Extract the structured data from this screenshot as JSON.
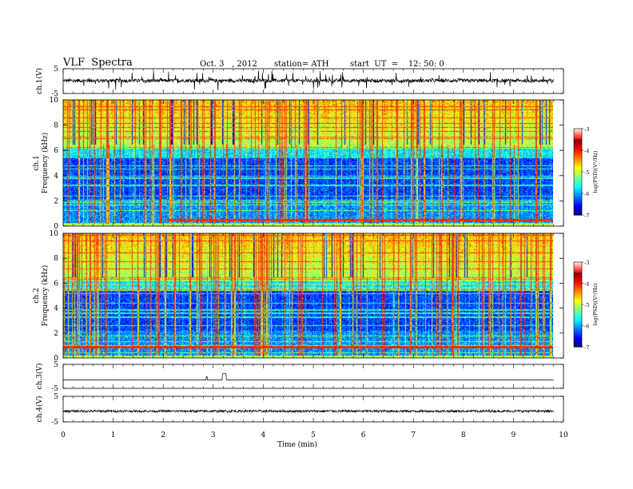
{
  "header": {
    "title": "VLF  Spectra",
    "date": "Oct. 3   , 2012",
    "station": "station= ATH",
    "start": "start  UT  =    12: 50: 0"
  },
  "chart_data": [
    {
      "type": "line",
      "ylabel": "ch.1(V)",
      "ylim": [
        -5,
        5
      ],
      "yticks": [
        "5",
        "-5"
      ],
      "xlim": [
        0,
        10
      ],
      "baseline": 0.2,
      "noise": 0.7,
      "spike_rate": 0.06,
      "spike_amp": 3.5
    },
    {
      "type": "heatmap",
      "ylabel": "Frequency  (kHz)",
      "channel": "ch.1",
      "ylim": [
        0,
        10
      ],
      "yticks": [
        "0",
        "2",
        "4",
        "6",
        "8",
        "10"
      ],
      "xlim": [
        0,
        10
      ],
      "colorbar": {
        "label": "log(PSD)(V²/Hz)",
        "ticks": [
          "-3",
          "-4",
          "-5",
          "-6",
          "-7"
        ],
        "range": [
          -7,
          -3
        ]
      },
      "hot_band_khz": [
        0.4,
        0.6
      ],
      "hot_band_start_min": 2.1
    },
    {
      "type": "heatmap",
      "ylabel": "Frequency  (kHz)",
      "channel": "ch.2",
      "ylim": [
        0,
        10
      ],
      "yticks": [
        "0",
        "2",
        "4",
        "6",
        "8",
        "10"
      ],
      "xlim": [
        0,
        10
      ],
      "colorbar": {
        "label": "log(PSD)(V²/Hz)",
        "ticks": [
          "-3",
          "-4",
          "-5",
          "-6",
          "-7"
        ],
        "range": [
          -7,
          -3
        ]
      },
      "hot_band_khz": [
        0.8,
        1.0
      ],
      "hot_band_start_min": 0.0
    },
    {
      "type": "line",
      "ylabel": "ch.3(V)",
      "ylim": [
        -5,
        5
      ],
      "yticks": [
        "5",
        "-5"
      ],
      "xlim": [
        0,
        10
      ],
      "baseline": -1.5,
      "noise": 0.05,
      "pulses": [
        {
          "t": 2.87,
          "w": 0.02,
          "amp": 1.4
        },
        {
          "t": 3.22,
          "w": 0.07,
          "amp": 2.6
        }
      ]
    },
    {
      "type": "line",
      "ylabel": "ch.4(V)",
      "ylim": [
        -5,
        5
      ],
      "yticks": [
        "5",
        "-5"
      ],
      "xlim": [
        0,
        10
      ],
      "baseline": -0.8,
      "noise": 0.45
    }
  ],
  "xaxis": {
    "label": "Time  (min)",
    "ticks": [
      "0",
      "1",
      "2",
      "3",
      "4",
      "5",
      "6",
      "7",
      "8",
      "9",
      "10"
    ],
    "range": [
      0,
      10
    ],
    "data_end_min": 9.8
  }
}
